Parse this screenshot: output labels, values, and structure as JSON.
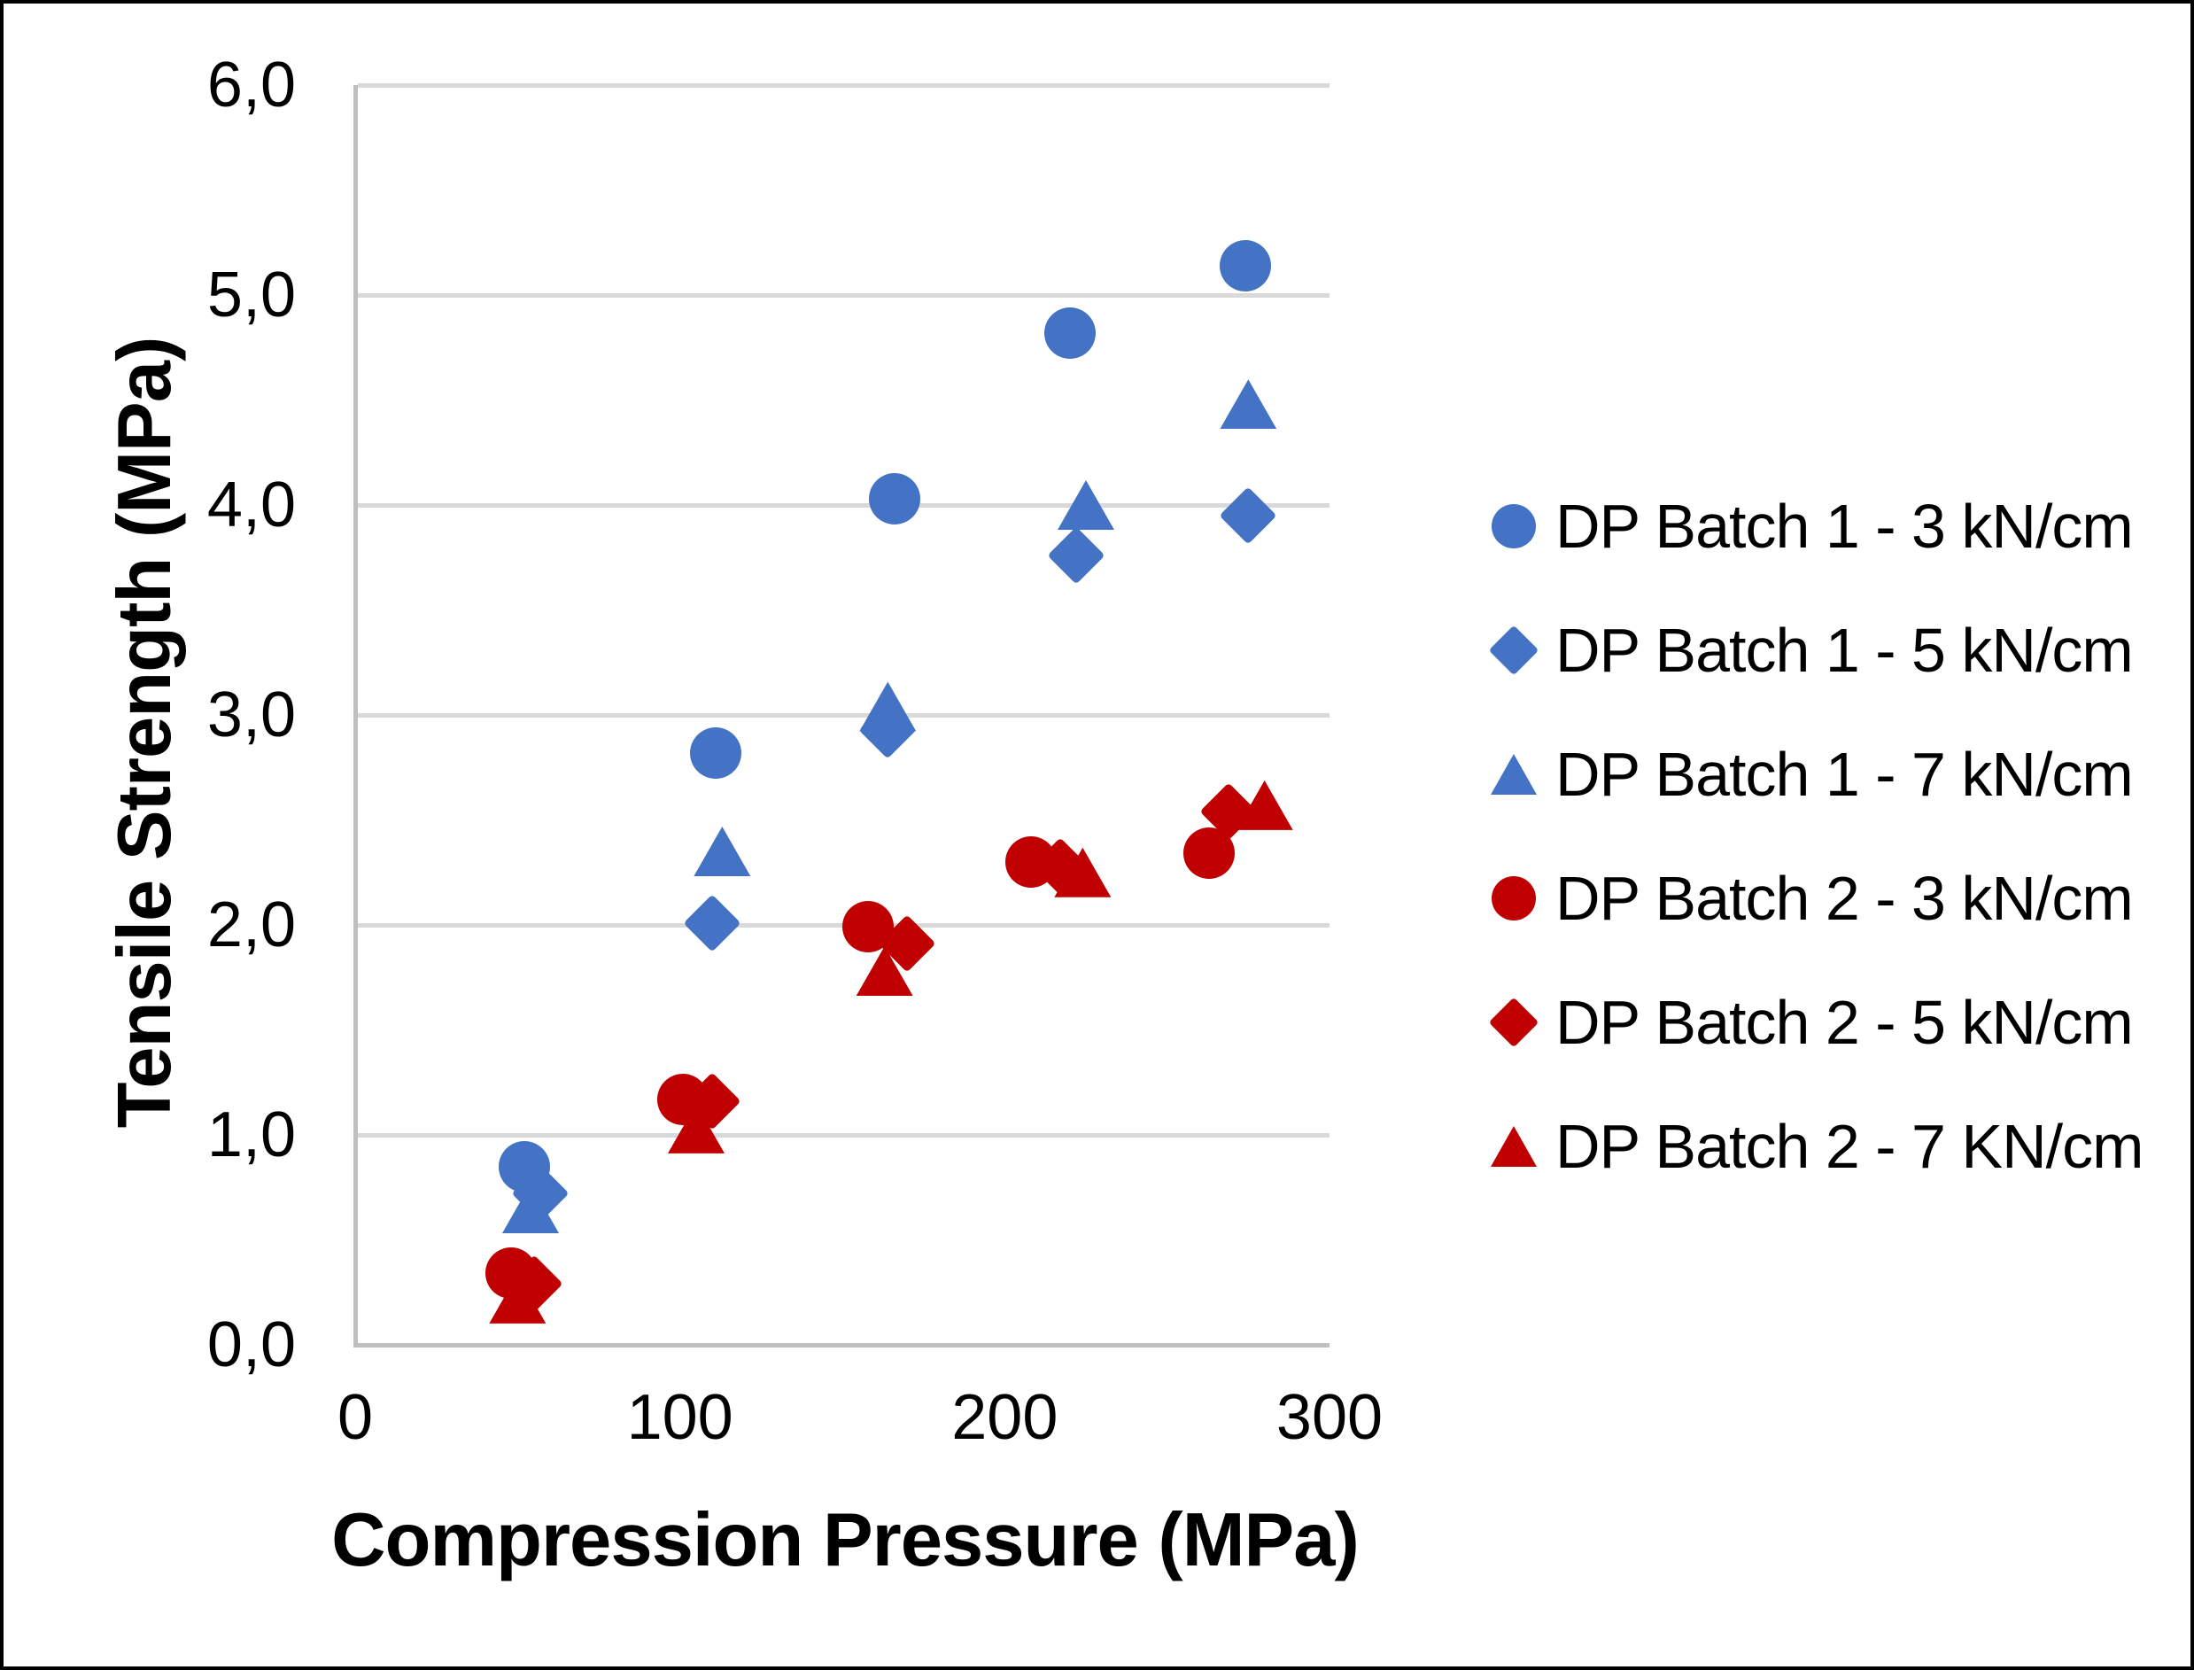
{
  "chart_data": {
    "type": "scatter",
    "title": "",
    "xlabel": "Compression Pressure (MPa)",
    "ylabel": "Tensile Strength (MPa)",
    "xlim": [
      0,
      300
    ],
    "ylim": [
      0,
      6.0
    ],
    "xticks": [
      {
        "value": 0,
        "label": "0"
      },
      {
        "value": 100,
        "label": "100"
      },
      {
        "value": 200,
        "label": "200"
      },
      {
        "value": 300,
        "label": "300"
      }
    ],
    "yticks": [
      {
        "value": 0,
        "label": "0,0"
      },
      {
        "value": 1,
        "label": "1,0"
      },
      {
        "value": 2,
        "label": "2,0"
      },
      {
        "value": 3,
        "label": "3,0"
      },
      {
        "value": 4,
        "label": "4,0"
      },
      {
        "value": 5,
        "label": "5,0"
      },
      {
        "value": 6,
        "label": "6,0"
      }
    ],
    "grid": "horizontal-only",
    "legend_position": "right",
    "series": [
      {
        "name": "DP Batch 1 - 3 kN/cm",
        "marker": "circle",
        "color": "#4472c4",
        "points": [
          [
            52,
            0.85
          ],
          [
            111,
            2.82
          ],
          [
            166,
            4.03
          ],
          [
            220,
            4.82
          ],
          [
            274,
            5.14
          ]
        ]
      },
      {
        "name": "DP Batch 1 - 5 kN/cm",
        "marker": "diamond",
        "color": "#4472c4",
        "points": [
          [
            57,
            0.72
          ],
          [
            110,
            2.01
          ],
          [
            164,
            2.93
          ],
          [
            222,
            3.76
          ],
          [
            275,
            3.95
          ]
        ]
      },
      {
        "name": "DP Batch 1 - 7 kN/cm",
        "marker": "triangle",
        "color": "#4472c4",
        "points": [
          [
            54,
            0.65
          ],
          [
            113,
            2.35
          ],
          [
            164,
            3.04
          ],
          [
            225,
            4.0
          ],
          [
            275,
            4.48
          ]
        ]
      },
      {
        "name": "DP Batch 2 - 3 kN/cm",
        "marker": "circle",
        "color": "#c00000",
        "points": [
          [
            48,
            0.34
          ],
          [
            101,
            1.17
          ],
          [
            158,
            1.99
          ],
          [
            208,
            2.3
          ],
          [
            263,
            2.34
          ]
        ]
      },
      {
        "name": "DP Batch 2 - 5 kN/cm",
        "marker": "diamond",
        "color": "#c00000",
        "points": [
          [
            55,
            0.29
          ],
          [
            110,
            1.16
          ],
          [
            170,
            1.91
          ],
          [
            217,
            2.28
          ],
          [
            269,
            2.54
          ]
        ]
      },
      {
        "name": "DP Batch 2 - 7 KN/cm",
        "marker": "triangle",
        "color": "#c00000",
        "points": [
          [
            50,
            0.22
          ],
          [
            105,
            1.03
          ],
          [
            163,
            1.78
          ],
          [
            224,
            2.25
          ],
          [
            280,
            2.57
          ]
        ]
      }
    ],
    "colors": {
      "blue": "#4472c4",
      "red": "#c00000",
      "gridline": "#d9d9d9",
      "axis_line": "#bfbfbf"
    }
  }
}
